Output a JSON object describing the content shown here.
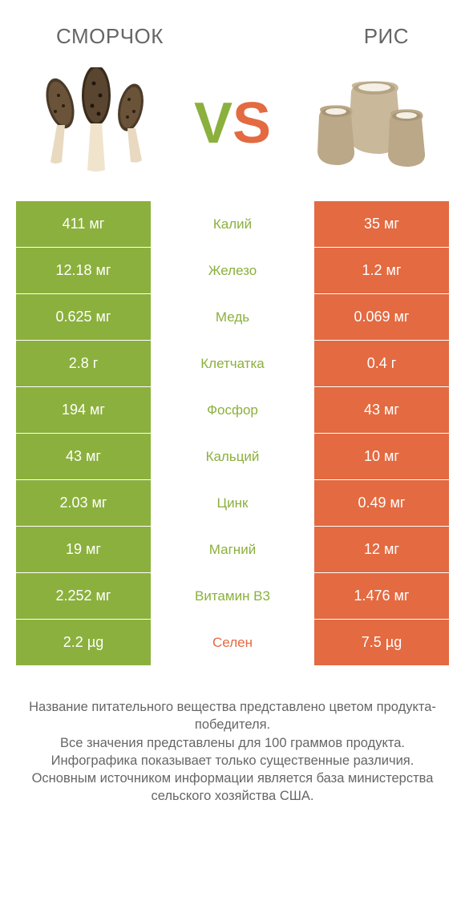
{
  "colors": {
    "green": "#8bb03d",
    "orange": "#e36a41",
    "text_gray": "#666666",
    "background": "#ffffff"
  },
  "header": {
    "left_title": "Сморчок",
    "right_title": "Рис"
  },
  "vs": {
    "v": "V",
    "s": "S"
  },
  "rows": [
    {
      "left": "411 мг",
      "mid": "Калий",
      "right": "35 мг",
      "winner": "left"
    },
    {
      "left": "12.18 мг",
      "mid": "Железо",
      "right": "1.2 мг",
      "winner": "left"
    },
    {
      "left": "0.625 мг",
      "mid": "Медь",
      "right": "0.069 мг",
      "winner": "left"
    },
    {
      "left": "2.8 г",
      "mid": "Клетчатка",
      "right": "0.4 г",
      "winner": "left"
    },
    {
      "left": "194 мг",
      "mid": "Фосфор",
      "right": "43 мг",
      "winner": "left"
    },
    {
      "left": "43 мг",
      "mid": "Кальций",
      "right": "10 мг",
      "winner": "left"
    },
    {
      "left": "2.03 мг",
      "mid": "Цинк",
      "right": "0.49 мг",
      "winner": "left"
    },
    {
      "left": "19 мг",
      "mid": "Магний",
      "right": "12 мг",
      "winner": "left"
    },
    {
      "left": "2.252 мг",
      "mid": "Витамин B3",
      "right": "1.476 мг",
      "winner": "left"
    },
    {
      "left": "2.2 µg",
      "mid": "Селен",
      "right": "7.5 µg",
      "winner": "right"
    }
  ],
  "footnote": "Название питательного вещества представлено цветом продукта-победителя.\nВсе значения представлены для 100 граммов продукта.\nИнфографика показывает только существенные различия.\nОсновным источником информации является база министерства сельского хозяйства США."
}
